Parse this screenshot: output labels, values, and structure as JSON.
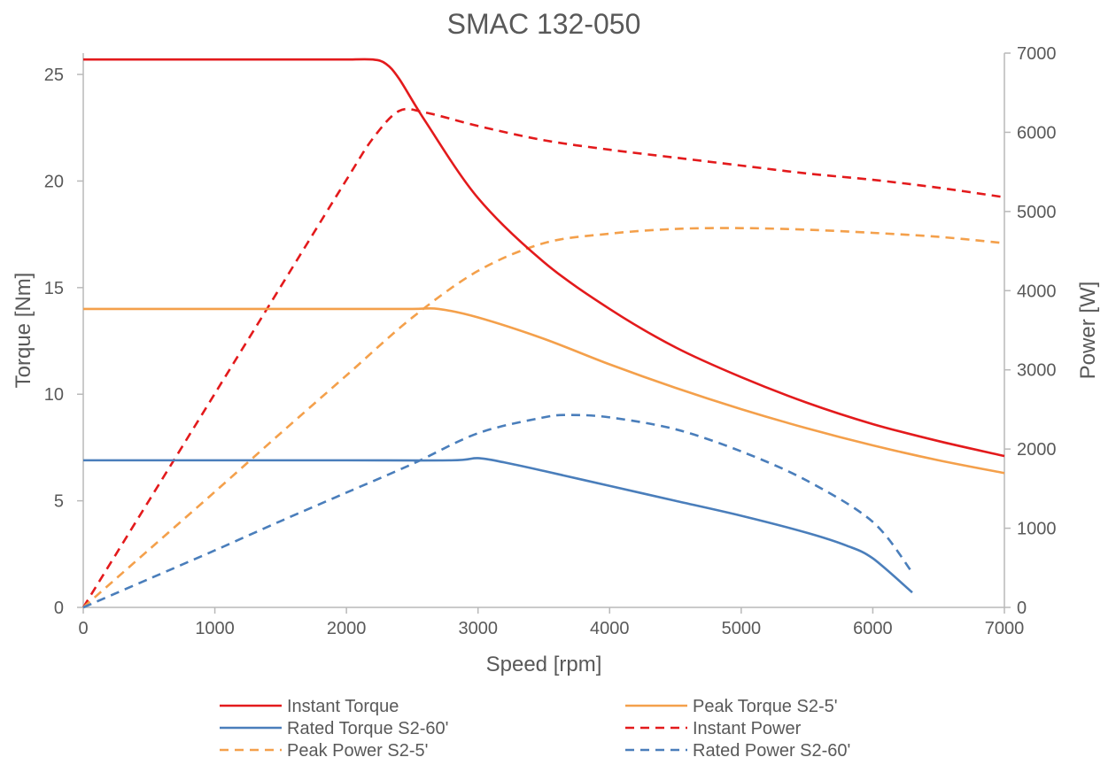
{
  "chart_data": {
    "type": "line",
    "title": "SMAC 132-050",
    "xlabel": "Speed [rpm]",
    "ylabel": "Torque [Nm]",
    "y2label": "Power [W]",
    "xlim": [
      0,
      7000
    ],
    "ylim": [
      0,
      26
    ],
    "y2lim": [
      0,
      7000
    ],
    "xticks": [
      "0",
      "1000",
      "2000",
      "3000",
      "4000",
      "5000",
      "6000",
      "7000"
    ],
    "yticks": [
      "0",
      "5",
      "10",
      "15",
      "20",
      "25"
    ],
    "y2ticks": [
      "0",
      "1000",
      "2000",
      "3000",
      "4000",
      "5000",
      "6000",
      "7000"
    ],
    "grid": false,
    "legend_position": "bottom",
    "series": [
      {
        "name": "Instant Torque",
        "axis": "left",
        "color": "#e31a1c",
        "dash": "solid",
        "x": [
          0,
          1000,
          1800,
          2000,
          2200,
          2300,
          2400,
          2600,
          3000,
          3500,
          4000,
          4500,
          5000,
          5500,
          6000,
          6500,
          7000
        ],
        "values": [
          25.7,
          25.7,
          25.7,
          25.7,
          25.7,
          25.5,
          24.8,
          22.8,
          19.2,
          16.2,
          14.0,
          12.2,
          10.8,
          9.6,
          8.6,
          7.8,
          7.1
        ]
      },
      {
        "name": "Peak Torque S2-5'",
        "axis": "left",
        "color": "#f4a04b",
        "dash": "solid",
        "x": [
          0,
          1000,
          2000,
          2500,
          2700,
          3000,
          3500,
          4000,
          4500,
          5000,
          5500,
          6000,
          6500,
          7000
        ],
        "values": [
          14.0,
          14.0,
          14.0,
          14.0,
          14.0,
          13.6,
          12.6,
          11.4,
          10.3,
          9.3,
          8.4,
          7.6,
          6.9,
          6.3
        ]
      },
      {
        "name": "Rated Torque S2-60'",
        "axis": "left",
        "color": "#4a7ebb",
        "dash": "solid",
        "x": [
          0,
          1000,
          2000,
          2800,
          3000,
          3200,
          3500,
          4000,
          4500,
          5000,
          5500,
          5800,
          6000,
          6300
        ],
        "values": [
          6.9,
          6.9,
          6.9,
          6.9,
          7.0,
          6.8,
          6.4,
          5.7,
          5.0,
          4.3,
          3.5,
          2.9,
          2.3,
          0.7
        ]
      },
      {
        "name": "Instant Power",
        "axis": "right",
        "color": "#e31a1c",
        "dash": "dashed",
        "x": [
          0,
          500,
          1000,
          1500,
          2000,
          2200,
          2400,
          2600,
          3000,
          3500,
          4000,
          4500,
          5000,
          5500,
          6000,
          6500,
          7000
        ],
        "values": [
          0,
          1350,
          2700,
          4050,
          5400,
          5920,
          6270,
          6250,
          6080,
          5900,
          5780,
          5680,
          5580,
          5480,
          5400,
          5300,
          5180
        ]
      },
      {
        "name": "Peak Power S2-5'",
        "axis": "right",
        "color": "#f4a04b",
        "dash": "dashed",
        "x": [
          0,
          500,
          1000,
          1500,
          2000,
          2500,
          3000,
          3500,
          4000,
          4500,
          5000,
          5500,
          6000,
          6500,
          7000
        ],
        "values": [
          0,
          730,
          1460,
          2200,
          2930,
          3660,
          4250,
          4600,
          4720,
          4780,
          4790,
          4770,
          4730,
          4680,
          4600
        ]
      },
      {
        "name": "Rated Power S2-60'",
        "axis": "right",
        "color": "#4a7ebb",
        "dash": "dashed",
        "x": [
          0,
          500,
          1000,
          1500,
          2000,
          2500,
          3000,
          3500,
          3700,
          4000,
          4500,
          5000,
          5500,
          6000,
          6300
        ],
        "values": [
          0,
          360,
          720,
          1090,
          1450,
          1810,
          2200,
          2400,
          2430,
          2400,
          2250,
          1970,
          1600,
          1080,
          440
        ]
      }
    ]
  }
}
